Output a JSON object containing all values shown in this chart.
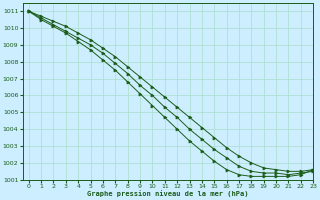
{
  "title": "Graphe pression niveau de la mer (hPa)",
  "background_color": "#cceeff",
  "grid_color": "#aaddcc",
  "line_color": "#1a5c1a",
  "marker_color": "#1a5c1a",
  "xlim": [
    -0.5,
    23
  ],
  "ylim": [
    1001,
    1011.5
  ],
  "xticks": [
    0,
    1,
    2,
    3,
    4,
    5,
    6,
    7,
    8,
    9,
    10,
    11,
    12,
    13,
    14,
    15,
    16,
    17,
    18,
    19,
    20,
    21,
    22,
    23
  ],
  "yticks": [
    1001,
    1002,
    1003,
    1004,
    1005,
    1006,
    1007,
    1008,
    1009,
    1010,
    1011
  ],
  "line1": [
    1011.0,
    1010.7,
    1010.4,
    1010.1,
    1009.7,
    1009.3,
    1008.8,
    1008.3,
    1007.7,
    1007.1,
    1006.5,
    1005.9,
    1005.3,
    1004.7,
    1004.1,
    1003.5,
    1002.9,
    1002.4,
    1002.0,
    1001.7,
    1001.6,
    1001.5,
    1001.5,
    1001.6
  ],
  "line2": [
    1011.0,
    1010.6,
    1010.2,
    1009.8,
    1009.4,
    1009.0,
    1008.5,
    1007.9,
    1007.3,
    1006.6,
    1006.0,
    1005.3,
    1004.7,
    1004.0,
    1003.4,
    1002.8,
    1002.3,
    1001.8,
    1001.5,
    1001.4,
    1001.4,
    1001.3,
    1001.4,
    1001.5
  ],
  "line3": [
    1011.0,
    1010.5,
    1010.1,
    1009.7,
    1009.2,
    1008.7,
    1008.1,
    1007.5,
    1006.8,
    1006.1,
    1005.4,
    1004.7,
    1004.0,
    1003.3,
    1002.7,
    1002.1,
    1001.6,
    1001.3,
    1001.2,
    1001.2,
    1001.2,
    1001.2,
    1001.3,
    1001.6
  ]
}
